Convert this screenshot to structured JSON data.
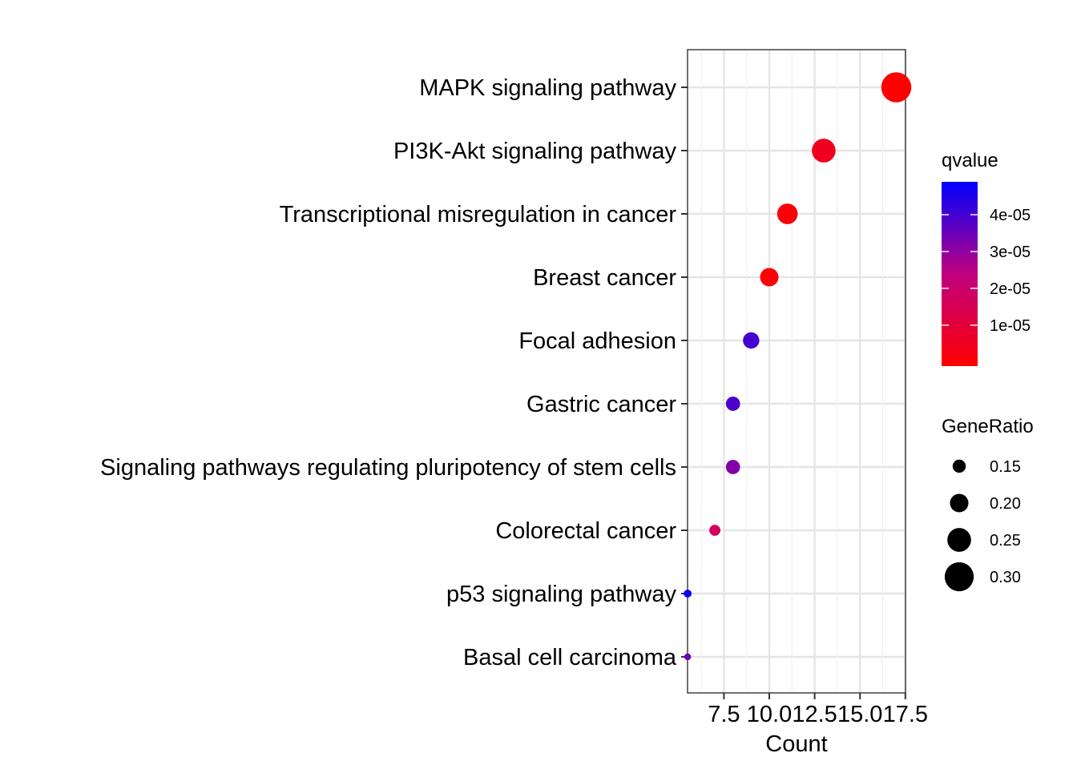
{
  "chart_data": {
    "type": "scatter",
    "title": "",
    "xlabel": "Count",
    "ylabel": "",
    "xlim": [
      5,
      17.5
    ],
    "x_ticks": [
      "7.5",
      "10.0",
      "12.5",
      "15.0",
      "17.5"
    ],
    "grid": true,
    "legend_position": "right",
    "categories": [
      "MAPK signaling pathway",
      "PI3K-Akt signaling pathway",
      "Transcriptional misregulation in cancer",
      "Breast cancer",
      "Focal adhesion",
      "Gastric cancer",
      "Signaling pathways regulating pluripotency of stem cells",
      "Colorectal cancer",
      "p53 signaling pathway",
      "Basal cell carcinoma"
    ],
    "points": [
      {
        "category": "MAPK signaling pathway",
        "count": 17,
        "gene_ratio": 0.31,
        "qvalue": 1e-07
      },
      {
        "category": "PI3K-Akt signaling pathway",
        "count": 13,
        "gene_ratio": 0.25,
        "qvalue": 6e-06
      },
      {
        "category": "Transcriptional misregulation in cancer",
        "count": 11,
        "gene_ratio": 0.22,
        "qvalue": 2e-06
      },
      {
        "category": "Breast cancer",
        "count": 10,
        "gene_ratio": 0.2,
        "qvalue": 1e-06
      },
      {
        "category": "Focal adhesion",
        "count": 9,
        "gene_ratio": 0.18,
        "qvalue": 4.1e-05
      },
      {
        "category": "Gastric cancer",
        "count": 8,
        "gene_ratio": 0.16,
        "qvalue": 4e-05
      },
      {
        "category": "Signaling pathways regulating pluripotency of stem cells",
        "count": 8,
        "gene_ratio": 0.16,
        "qvalue": 3.3e-05
      },
      {
        "category": "Colorectal cancer",
        "count": 7,
        "gene_ratio": 0.13,
        "qvalue": 1.8e-05
      },
      {
        "category": "p53 signaling pathway",
        "count": 5.5,
        "gene_ratio": 0.1,
        "qvalue": 4.9e-05
      },
      {
        "category": "Basal cell carcinoma",
        "count": 5.5,
        "gene_ratio": 0.09,
        "qvalue": 3.5e-05
      }
    ],
    "color_legend": {
      "title": "qvalue",
      "labels": [
        "4e-05",
        "3e-05",
        "2e-05",
        "1e-05"
      ],
      "low_color": "#ff0000",
      "high_color": "#0000ff",
      "range": [
        0,
        5e-05
      ]
    },
    "size_legend": {
      "title": "GeneRatio",
      "labels": [
        "0.15",
        "0.20",
        "0.25",
        "0.30"
      ],
      "values": [
        0.15,
        0.2,
        0.25,
        0.3
      ]
    }
  }
}
